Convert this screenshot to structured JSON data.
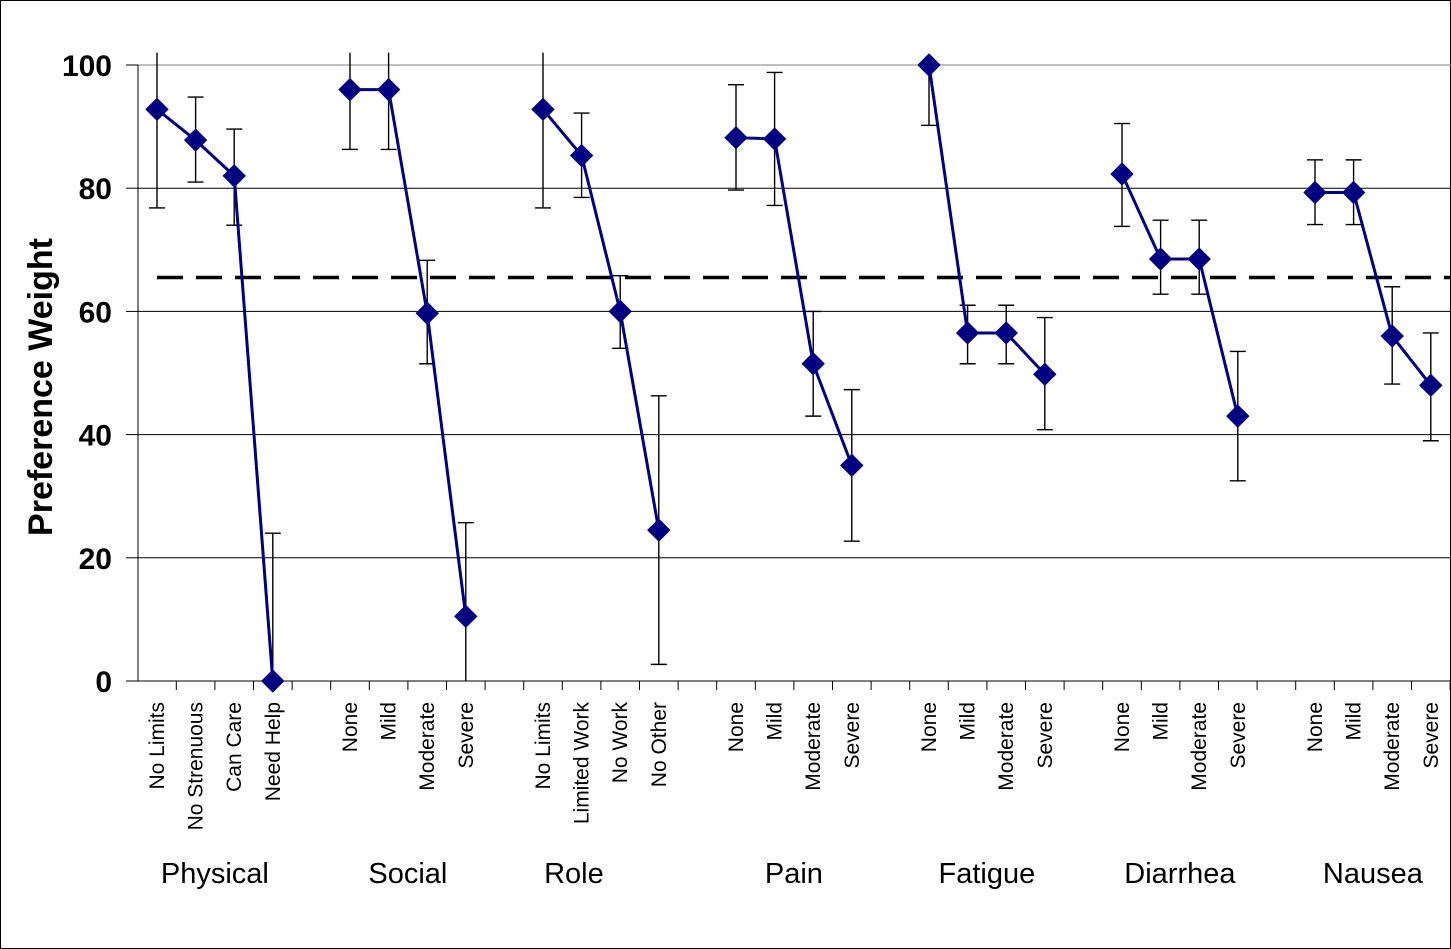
{
  "chart_data": {
    "type": "line",
    "title": "",
    "xlabel": "",
    "ylabel": "Preference Weight",
    "ylim": [
      0,
      100
    ],
    "yticks": [
      "0",
      "20",
      "40",
      "60",
      "80",
      "100"
    ],
    "grid": "horizontal",
    "reference_line": {
      "y": 65.5,
      "style": "dashed",
      "color": "#000000"
    },
    "colors": {
      "series": "#000080",
      "grid": "#000000",
      "error_bars": "#000000"
    },
    "groups": [
      {
        "name": "Physical",
        "categories": [
          "No Limits",
          "No Strenuous",
          "Can Care",
          "Need Help"
        ],
        "values": [
          92.8,
          87.8,
          82.0,
          0.0
        ],
        "err_low": [
          76.8,
          81.0,
          74.0,
          0.0
        ],
        "err_high": [
          102,
          94.8,
          89.6,
          24.0
        ]
      },
      {
        "name": "Social",
        "categories": [
          "None",
          "Mild",
          "Moderate",
          "Severe"
        ],
        "values": [
          96.0,
          96.0,
          59.7,
          10.5
        ],
        "err_low": [
          86.3,
          86.3,
          51.5,
          0.0
        ],
        "err_high": [
          102,
          102,
          68.3,
          25.7
        ]
      },
      {
        "name": "Role",
        "categories": [
          "No Limits",
          "Limited Work",
          "No Work",
          "No Other"
        ],
        "values": [
          92.8,
          85.3,
          60.0,
          24.5
        ],
        "err_low": [
          76.8,
          78.5,
          54.0,
          2.7
        ],
        "err_high": [
          102,
          92.2,
          65.8,
          46.3
        ]
      },
      {
        "name": "Pain",
        "categories": [
          "None",
          "Mild",
          "Moderate",
          "Severe"
        ],
        "values": [
          88.2,
          88.0,
          51.5,
          35.0
        ],
        "err_low": [
          79.7,
          77.2,
          43.0,
          22.7
        ],
        "err_high": [
          96.8,
          98.8,
          60.0,
          47.3
        ]
      },
      {
        "name": "Fatigue",
        "categories": [
          "None",
          "Mild",
          "Moderate",
          "Severe"
        ],
        "values": [
          100.0,
          56.5,
          56.5,
          49.8
        ],
        "err_low": [
          90.2,
          51.5,
          51.5,
          40.8
        ],
        "err_high": [
          100.0,
          61.0,
          61.0,
          59.0
        ]
      },
      {
        "name": "Diarrhea",
        "categories": [
          "None",
          "Mild",
          "Moderate",
          "Severe"
        ],
        "values": [
          82.3,
          68.5,
          68.5,
          43.0
        ],
        "err_low": [
          73.8,
          62.8,
          62.8,
          32.5
        ],
        "err_high": [
          90.5,
          74.8,
          74.8,
          53.5
        ]
      },
      {
        "name": "Nausea",
        "categories": [
          "None",
          "Mild",
          "Moderate",
          "Severe"
        ],
        "values": [
          79.3,
          79.3,
          56.0,
          48.0
        ],
        "err_low": [
          74.1,
          74.1,
          48.2,
          39.0
        ],
        "err_high": [
          84.6,
          84.6,
          64.0,
          56.5
        ]
      }
    ]
  }
}
